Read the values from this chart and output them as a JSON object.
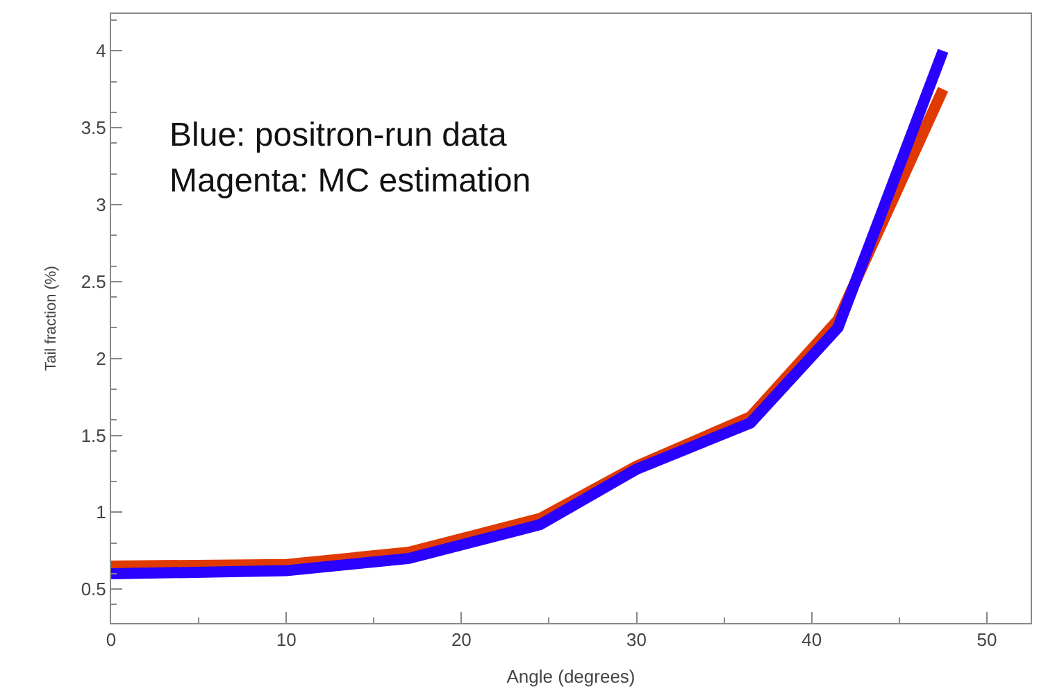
{
  "chart_data": {
    "type": "line",
    "xlabel": "Angle (degrees)",
    "ylabel": "Tail fraction (%)",
    "x": [
      0,
      10,
      17,
      24.5,
      30,
      36.5,
      41.5,
      47.5
    ],
    "series": [
      {
        "color": "#e03a00",
        "values": [
          0.65,
          0.66,
          0.74,
          0.96,
          1.3,
          1.62,
          2.25,
          3.75
        ]
      },
      {
        "color": "#2a00ff",
        "values": [
          0.6,
          0.62,
          0.7,
          0.92,
          1.28,
          1.58,
          2.2,
          4.0
        ]
      }
    ],
    "xlim": [
      0,
      52.5
    ],
    "xticks": [
      0,
      10,
      20,
      30,
      40,
      50
    ],
    "ylim": [
      0.28,
      4.24
    ],
    "yticks": [
      0.5,
      1,
      1.5,
      2,
      2.5,
      3,
      3.5,
      4
    ],
    "marker": "none",
    "line_style": "solid",
    "annotations": [
      "Blue: positron-run data",
      "Magenta: MC estimation"
    ]
  }
}
